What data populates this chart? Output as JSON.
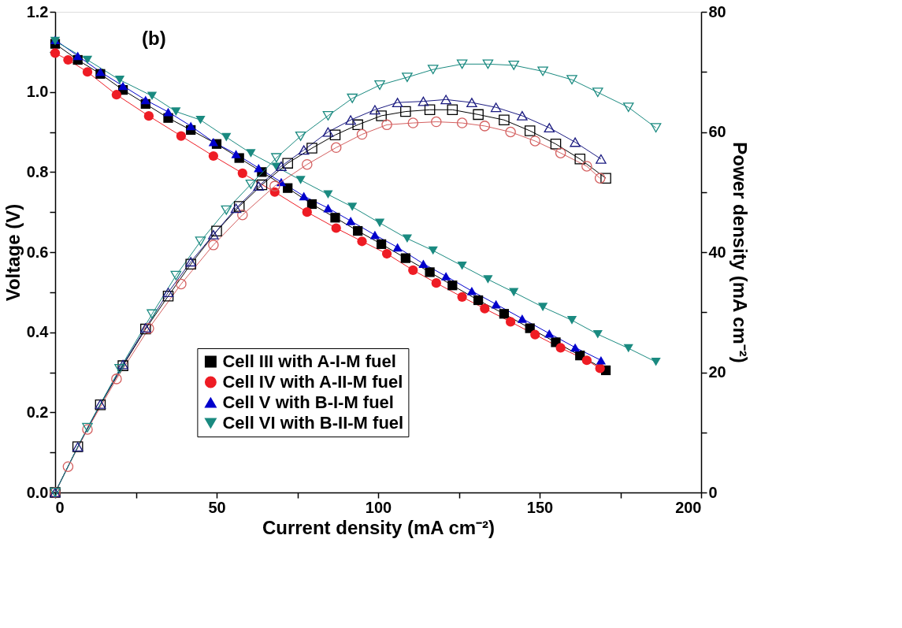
{
  "chart_data": {
    "type": "line",
    "xlabel": "Current density (mA cm⁻²)",
    "ylabel": "Voltage (V)",
    "y2label": "Power density (mA cm⁻²)",
    "annotations": [
      "(b)"
    ],
    "xlim": [
      0,
      200
    ],
    "xticks": [
      0,
      {
        "value": 25,
        "label": null
      },
      50,
      {
        "value": 75,
        "label": null
      },
      100,
      {
        "value": 125,
        "label": null
      },
      150,
      {
        "value": 175,
        "label": null
      },
      200
    ],
    "ylim": [
      0,
      1.2
    ],
    "yticks": [
      {
        "value": 0,
        "label": "0.0"
      },
      {
        "value": 0.1,
        "label": null
      },
      {
        "value": 0.2,
        "label": "0.2"
      },
      {
        "value": 0.3,
        "label": null
      },
      {
        "value": 0.4,
        "label": "0.4"
      },
      {
        "value": 0.5,
        "label": null
      },
      {
        "value": 0.6,
        "label": "0.6"
      },
      {
        "value": 0.7,
        "label": null
      },
      {
        "value": 0.8,
        "label": "0.8"
      },
      {
        "value": 0.9,
        "label": null
      },
      {
        "value": 1.0,
        "label": "1.0"
      },
      {
        "value": 1.1,
        "label": null
      },
      {
        "value": 1.2,
        "label": "1.2"
      }
    ],
    "y2lim": [
      0,
      80
    ],
    "y2ticks": [
      0,
      {
        "value": 10,
        "label": null
      },
      20,
      {
        "value": 30,
        "label": null
      },
      40,
      {
        "value": 50,
        "label": null
      },
      60,
      {
        "value": 70,
        "label": null
      },
      80
    ],
    "grid": false,
    "legend": "bottom left",
    "line_style": "solid",
    "series": [
      {
        "name": "Cell III with A-I-M fuel",
        "color": "#000000",
        "marker": "square",
        "x": [
          0,
          7,
          14,
          21,
          28,
          35,
          42,
          50,
          57,
          64,
          72,
          79.5,
          86.7,
          93.7,
          101,
          108.5,
          116,
          123,
          131,
          139,
          147,
          155,
          162.5,
          170.5
        ],
        "values": [
          1.12,
          1.08,
          1.045,
          1.005,
          0.97,
          0.935,
          0.905,
          0.87,
          0.835,
          0.8,
          0.76,
          0.72,
          0.686,
          0.653,
          0.62,
          0.585,
          0.55,
          0.517,
          0.48,
          0.446,
          0.41,
          0.375,
          0.342,
          0.305
        ]
      },
      {
        "name": "Cell IV with A-II-M fuel",
        "color": "#ee1c24",
        "marker": "circle",
        "x": [
          0,
          4,
          10,
          19,
          29,
          39,
          49,
          58,
          68,
          78,
          87,
          95,
          102.7,
          110.8,
          118,
          126,
          133,
          141,
          148.6,
          156.5,
          164.6,
          168.7
        ],
        "values": [
          1.097,
          1.08,
          1.05,
          0.993,
          0.94,
          0.89,
          0.84,
          0.797,
          0.75,
          0.7,
          0.66,
          0.627,
          0.596,
          0.555,
          0.523,
          0.488,
          0.459,
          0.426,
          0.394,
          0.361,
          0.33,
          0.31
        ]
      },
      {
        "name": "Cell V with B-I-M fuel",
        "color": "#0000cc",
        "marker": "triangle",
        "x": [
          0,
          7,
          14,
          21,
          28,
          35,
          42,
          49,
          56,
          63,
          70,
          77,
          84.5,
          91.5,
          99,
          106,
          114,
          121,
          129,
          136.5,
          144.6,
          153,
          161,
          169
        ],
        "values": [
          1.13,
          1.09,
          1.05,
          1.015,
          0.98,
          0.95,
          0.915,
          0.875,
          0.845,
          0.81,
          0.775,
          0.74,
          0.71,
          0.678,
          0.643,
          0.612,
          0.571,
          0.54,
          0.503,
          0.47,
          0.434,
          0.397,
          0.362,
          0.33
        ]
      },
      {
        "name": "Cell VI with B-II-M fuel",
        "color": "#1a8a80",
        "marker": "triangle-down",
        "x": [
          0,
          10,
          20,
          30,
          37.4,
          45,
          53,
          60.6,
          68.5,
          76,
          84.5,
          92,
          100.5,
          109,
          117,
          126,
          134,
          142,
          151,
          160,
          168,
          177.5,
          186
        ],
        "values": [
          1.127,
          1.08,
          1.03,
          0.99,
          0.951,
          0.93,
          0.887,
          0.847,
          0.813,
          0.78,
          0.744,
          0.713,
          0.673,
          0.634,
          0.604,
          0.566,
          0.532,
          0.5,
          0.463,
          0.43,
          0.395,
          0.36,
          0.326
        ]
      },
      {
        "color": "#000000",
        "marker": "square",
        "axis": "y2",
        "x": [
          0,
          7,
          14,
          21,
          28,
          35,
          42,
          50,
          57,
          64,
          72,
          79.5,
          86.7,
          93.7,
          101,
          108.5,
          116,
          123,
          131,
          139,
          147,
          155,
          162.5,
          170.5
        ],
        "values": [
          0,
          7.6,
          14.6,
          21.1,
          27.2,
          32.7,
          38,
          43.5,
          47.6,
          51.2,
          54.8,
          57.3,
          59.5,
          61.2,
          62.7,
          63.4,
          63.7,
          63.7,
          62.9,
          62,
          60.2,
          58,
          55.5,
          52.3
        ]
      },
      {
        "color": "#d46060",
        "marker": "circle",
        "axis": "y2",
        "x": [
          0,
          4,
          10,
          19,
          29,
          39,
          49,
          58,
          68,
          78,
          87,
          95,
          102.7,
          110.8,
          118,
          126,
          133,
          141,
          148.6,
          156.5,
          164.6,
          168.7
        ],
        "values": [
          0,
          4.3,
          10.5,
          18.9,
          27.3,
          34.7,
          41.2,
          46.2,
          51,
          54.6,
          57.4,
          59.6,
          61.2,
          61.5,
          61.7,
          61.5,
          61,
          60,
          58.5,
          56.5,
          54.3,
          52.3
        ]
      },
      {
        "color": "#1a1a80",
        "marker": "triangle",
        "axis": "y2",
        "x": [
          0,
          7,
          14,
          21,
          28,
          35,
          42,
          49,
          56,
          63,
          70,
          77,
          84.5,
          91.5,
          99,
          106,
          114,
          121,
          129,
          136.5,
          144.6,
          153,
          161,
          169
        ],
        "values": [
          0,
          7.6,
          14.7,
          21.3,
          27.4,
          33.3,
          38.4,
          42.9,
          47.3,
          51,
          54.3,
          57,
          60,
          62,
          63.7,
          64.9,
          65.1,
          65.4,
          64.9,
          64.1,
          62.7,
          60.7,
          58.3,
          55.5
        ]
      },
      {
        "color": "#1a8a80",
        "marker": "triangle-down",
        "axis": "y2",
        "x": [
          0,
          10,
          20,
          30,
          37.4,
          45,
          53,
          60.6,
          68.5,
          76,
          84.5,
          92,
          100.5,
          109,
          117,
          126,
          134,
          142,
          151,
          160,
          168,
          177.5,
          186
        ],
        "values": [
          0,
          10.8,
          20.6,
          29.7,
          36.1,
          41.8,
          47,
          51.3,
          55.7,
          59.3,
          62.7,
          65.6,
          67.8,
          69.1,
          70.4,
          71.3,
          71.3,
          71.1,
          70.1,
          68.7,
          66.6,
          64.1,
          60.7
        ]
      }
    ]
  }
}
